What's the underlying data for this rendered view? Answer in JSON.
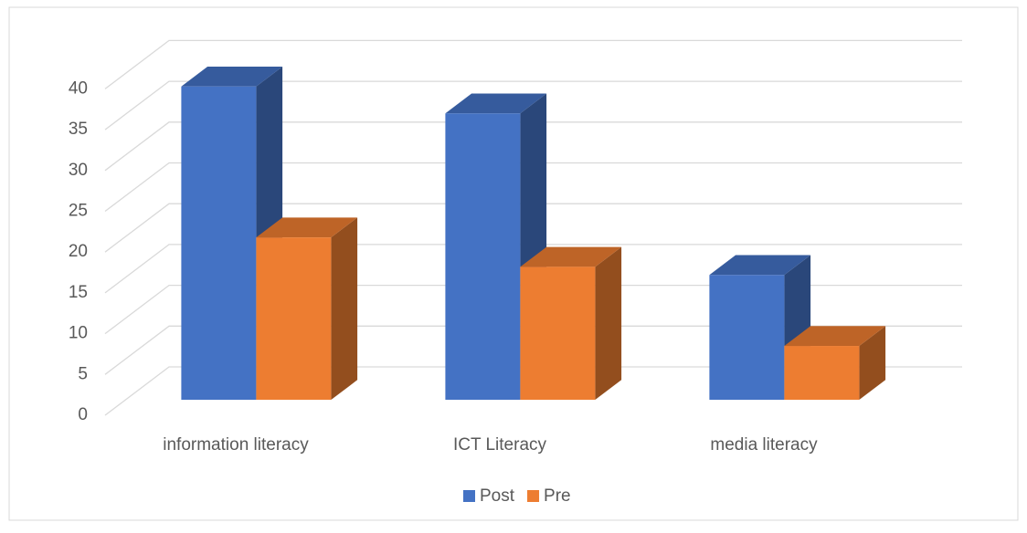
{
  "chart_data": {
    "type": "bar3d",
    "categories": [
      "information literacy",
      "ICT Literacy",
      "media literacy"
    ],
    "series": [
      {
        "name": "Post",
        "color": "#4472c4",
        "values": [
          38.4,
          35.1,
          15.3
        ]
      },
      {
        "name": "Pre",
        "color": "#ed7d31",
        "values": [
          19.9,
          16.3,
          6.6
        ]
      }
    ],
    "ylim": [
      0,
      40
    ],
    "yticks": [
      0,
      5,
      10,
      15,
      20,
      25,
      30,
      35,
      40
    ],
    "grid": true,
    "legend": "bottom"
  }
}
